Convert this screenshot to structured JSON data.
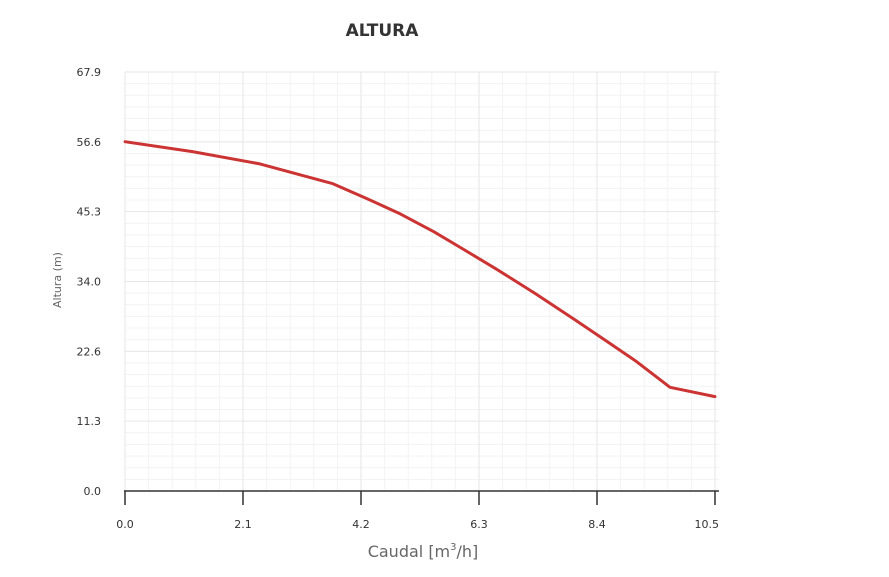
{
  "chart_data": {
    "type": "line",
    "title": "ALTURA",
    "xlabel_main": "Caudal [m",
    "xlabel_sup": "3",
    "xlabel_end": "/h]",
    "ylabel": "Altura (m)",
    "xlim": [
      0,
      10.5
    ],
    "ylim": [
      0,
      67.9
    ],
    "xticks": [
      "0.0",
      "2.1",
      "4.2",
      "6.3",
      "8.4",
      "10.5"
    ],
    "yticks": [
      "0.0",
      "11.3",
      "22.6",
      "34.0",
      "45.3",
      "56.6",
      "67.9"
    ],
    "grid": true,
    "line_color": "#cc3333",
    "series": [
      {
        "x": [
          0.0,
          1.2,
          2.4,
          3.7,
          4.3,
          4.9,
          5.5,
          6.0,
          6.6,
          7.3,
          8.0,
          8.6,
          9.1,
          9.7,
          10.5
        ],
        "y": [
          56.6,
          55.0,
          53.0,
          49.8,
          47.4,
          44.9,
          42.0,
          39.3,
          36.0,
          32.0,
          27.8,
          24.1,
          21.0,
          16.8,
          15.3
        ]
      }
    ]
  }
}
